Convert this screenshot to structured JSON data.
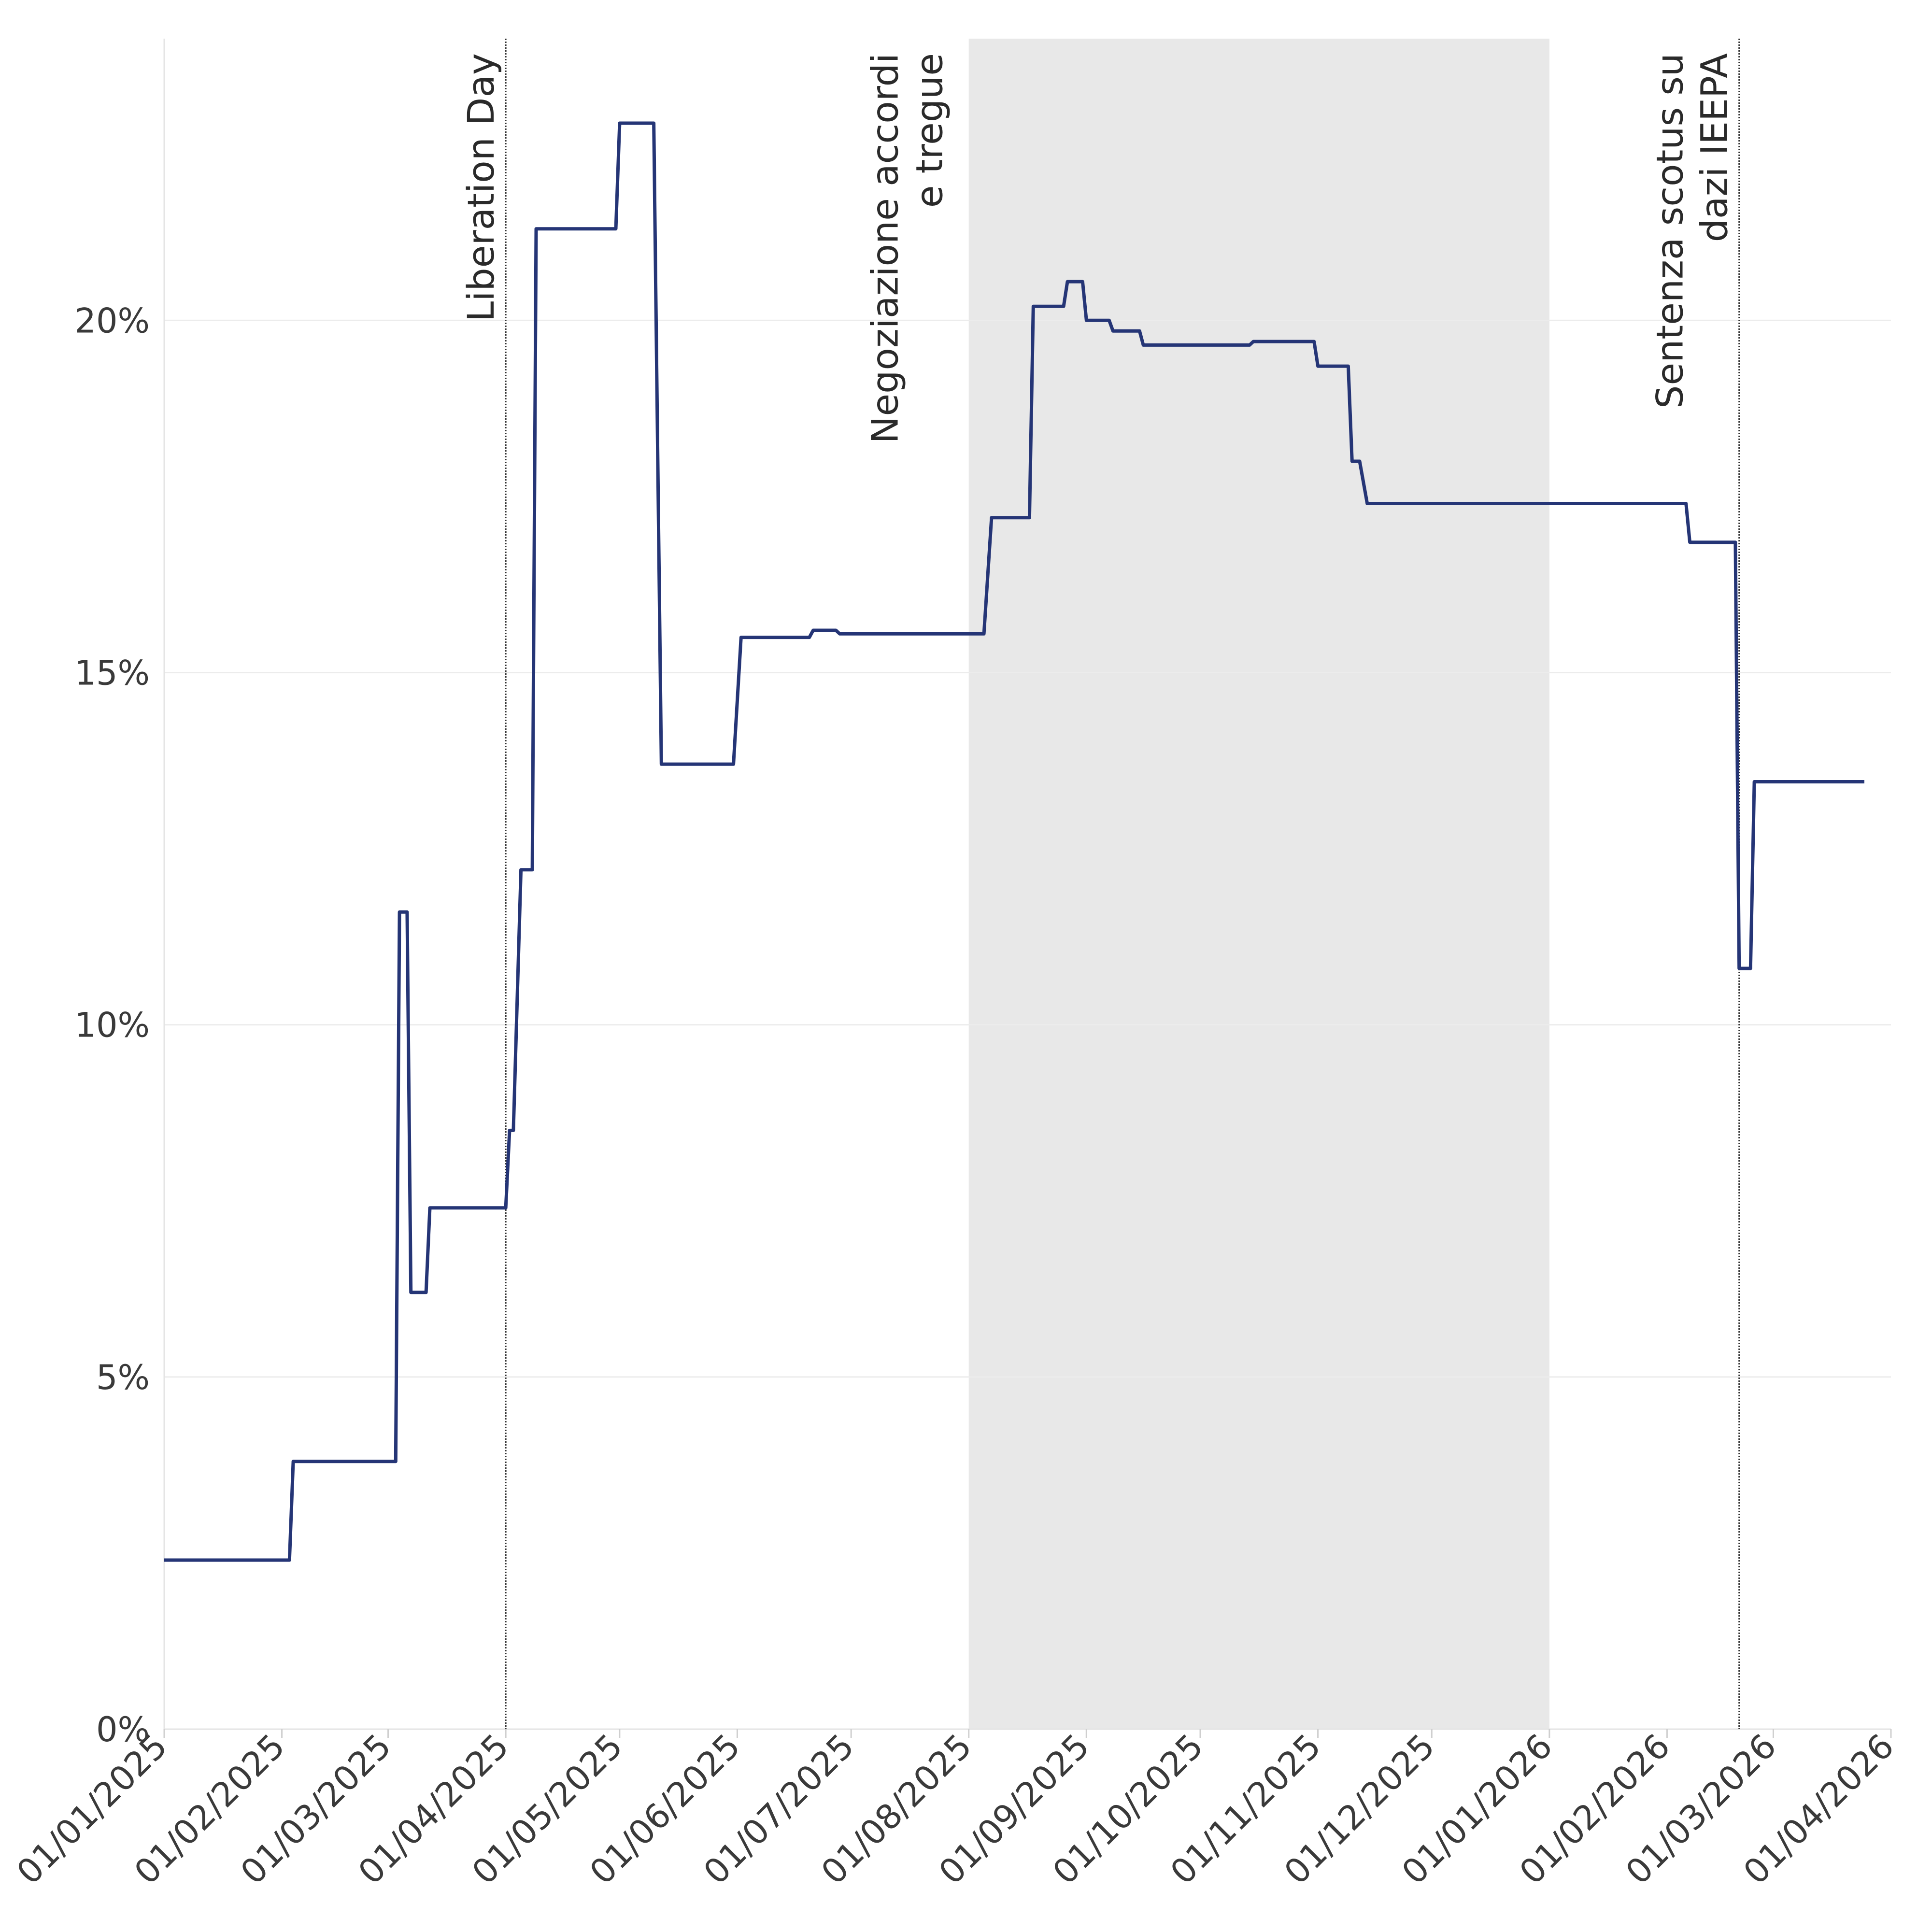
{
  "chart_data": {
    "type": "line",
    "title": "",
    "xlabel": "",
    "ylabel": "",
    "x_range": [
      "2025-01-01",
      "2026-04-01"
    ],
    "ylim": [
      0,
      24
    ],
    "grid": "horizontal",
    "legend": "none",
    "x_ticks": [
      "01/01/2025",
      "01/02/2025",
      "01/03/2025",
      "01/04/2025",
      "01/05/2025",
      "01/06/2025",
      "01/07/2025",
      "01/08/2025",
      "01/09/2025",
      "01/10/2025",
      "01/11/2025",
      "01/12/2025",
      "01/01/2026",
      "01/02/2026",
      "01/03/2026",
      "01/04/2026"
    ],
    "x_tick_dates": [
      "2025-01-01",
      "2025-02-01",
      "2025-03-01",
      "2025-04-01",
      "2025-05-01",
      "2025-06-01",
      "2025-07-01",
      "2025-08-01",
      "2025-09-01",
      "2025-10-01",
      "2025-11-01",
      "2025-12-01",
      "2026-01-01",
      "2026-02-01",
      "2026-03-01",
      "2026-04-01"
    ],
    "y_ticks": [
      0,
      5,
      10,
      15,
      20
    ],
    "y_tick_labels": [
      "0%",
      "5%",
      "10%",
      "15%",
      "20%"
    ],
    "colors": {
      "line": "#253576",
      "shade": "#e8e8e8",
      "grid": "#ececec",
      "event": "#333333"
    },
    "shaded_period": {
      "start": "2025-08-01",
      "end": "2026-01-01",
      "label_lines": [
        "Negoziazione accordi",
        "e tregue"
      ]
    },
    "events": [
      {
        "date": "2025-04-01",
        "label_lines": [
          "Liberation Day"
        ]
      },
      {
        "date": "2026-02-20",
        "label_lines": [
          "Sentenza scotus su",
          "dazi IEEPA"
        ]
      }
    ],
    "series": [
      {
        "points": [
          [
            "2025-01-01",
            2.4
          ],
          [
            "2025-02-03",
            2.4
          ],
          [
            "2025-02-04",
            3.8
          ],
          [
            "2025-03-03",
            3.8
          ],
          [
            "2025-03-04",
            11.6
          ],
          [
            "2025-03-06",
            11.6
          ],
          [
            "2025-03-07",
            6.2
          ],
          [
            "2025-03-11",
            6.2
          ],
          [
            "2025-03-12",
            7.4
          ],
          [
            "2025-04-01",
            7.4
          ],
          [
            "2025-04-02",
            8.5
          ],
          [
            "2025-04-03",
            8.5
          ],
          [
            "2025-04-05",
            12.2
          ],
          [
            "2025-04-08",
            12.2
          ],
          [
            "2025-04-09",
            21.3
          ],
          [
            "2025-04-10",
            21.3
          ],
          [
            "2025-04-30",
            21.3
          ],
          [
            "2025-05-01",
            22.8
          ],
          [
            "2025-05-10",
            22.8
          ],
          [
            "2025-05-12",
            13.7
          ],
          [
            "2025-05-31",
            13.7
          ],
          [
            "2025-06-02",
            15.5
          ],
          [
            "2025-06-20",
            15.5
          ],
          [
            "2025-06-21",
            15.6
          ],
          [
            "2025-06-27",
            15.6
          ],
          [
            "2025-06-28",
            15.55
          ],
          [
            "2025-08-01",
            15.55
          ],
          [
            "2025-08-05",
            15.55
          ],
          [
            "2025-08-07",
            17.2
          ],
          [
            "2025-08-17",
            17.2
          ],
          [
            "2025-08-18",
            20.2
          ],
          [
            "2025-08-26",
            20.2
          ],
          [
            "2025-08-27",
            20.55
          ],
          [
            "2025-08-31",
            20.55
          ],
          [
            "2025-09-01",
            20.0
          ],
          [
            "2025-09-07",
            20.0
          ],
          [
            "2025-09-08",
            19.85
          ],
          [
            "2025-09-15",
            19.85
          ],
          [
            "2025-09-16",
            19.65
          ],
          [
            "2025-10-14",
            19.65
          ],
          [
            "2025-10-15",
            19.7
          ],
          [
            "2025-10-31",
            19.7
          ],
          [
            "2025-11-01",
            19.35
          ],
          [
            "2025-11-09",
            19.35
          ],
          [
            "2025-11-10",
            18.0
          ],
          [
            "2025-11-12",
            18.0
          ],
          [
            "2025-11-14",
            17.4
          ],
          [
            "2026-02-06",
            17.4
          ],
          [
            "2026-02-07",
            16.85
          ],
          [
            "2026-02-19",
            16.85
          ],
          [
            "2026-02-20",
            10.8
          ],
          [
            "2026-02-23",
            10.8
          ],
          [
            "2026-02-24",
            13.45
          ],
          [
            "2026-03-25",
            13.45
          ]
        ]
      }
    ]
  }
}
